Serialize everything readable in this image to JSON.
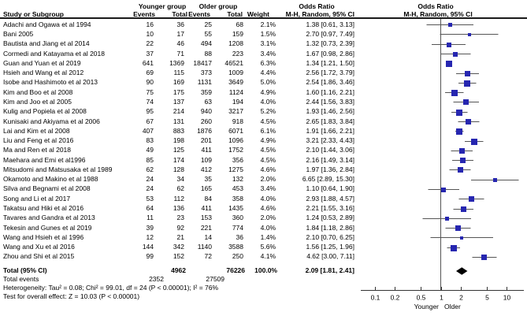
{
  "header": {
    "group1": "Younger group",
    "group2": "Older group",
    "odds_ratio": "Odds Ratio",
    "method_ci": "M-H, Random, 95% CI",
    "study": "Study or Subgroup",
    "events": "Events",
    "total": "Total",
    "weight": "Weight"
  },
  "axis": {
    "scale": "log",
    "range": [
      0.1,
      10
    ],
    "ticks": [
      0.1,
      0.2,
      0.5,
      1,
      2,
      5,
      10
    ],
    "tick_labels": [
      "0.1",
      "0.2",
      "0.5",
      "1",
      "2",
      "5",
      "10"
    ],
    "favours_left": "Younger",
    "favours_right": "Older"
  },
  "colors": {
    "marker": "#2626b0",
    "ci_line": "#555555",
    "guide_line": "#555555",
    "axis": "#333333",
    "diamond": "#000000",
    "rule": "#1a1a1a"
  },
  "chart_data": {
    "type": "scatter",
    "subtype": "forest-plot",
    "effect_measure": "Odds Ratio, M-H, Random, 95% CI",
    "studies": [
      {
        "name": "Adachi and Ogawa et al 1994",
        "events_younger": "16",
        "total_younger": "36",
        "events_older": "25",
        "total_older": "68",
        "weight": "2.1%",
        "or_text": "1.38 [0.61, 3.13]",
        "or": 1.38,
        "lo": 0.61,
        "hi": 3.13,
        "w": 2.1
      },
      {
        "name": "Bani 2005",
        "events_younger": "10",
        "total_younger": "17",
        "events_older": "55",
        "total_older": "159",
        "weight": "1.5%",
        "or_text": "2.70 [0.97, 7.49]",
        "or": 2.7,
        "lo": 0.97,
        "hi": 7.49,
        "w": 1.5
      },
      {
        "name": "Bautista and Jiang et al 2014",
        "events_younger": "22",
        "total_younger": "46",
        "events_older": "494",
        "total_older": "1208",
        "weight": "3.1%",
        "or_text": "1.32 [0.73, 2.39]",
        "or": 1.32,
        "lo": 0.73,
        "hi": 2.39,
        "w": 3.1
      },
      {
        "name": "Cormedi and Katayama et al 2018",
        "events_younger": "37",
        "total_younger": "71",
        "events_older": "88",
        "total_older": "223",
        "weight": "3.4%",
        "or_text": "1.67 [0.98, 2.86]",
        "or": 1.67,
        "lo": 0.98,
        "hi": 2.86,
        "w": 3.4
      },
      {
        "name": "Guan and Yuan et al 2019",
        "events_younger": "641",
        "total_younger": "1369",
        "events_older": "18417",
        "total_older": "46521",
        "weight": "6.3%",
        "or_text": "1.34 [1.21, 1.50]",
        "or": 1.34,
        "lo": 1.21,
        "hi": 1.5,
        "w": 6.3
      },
      {
        "name": "Hsieh and Wang et al 2012",
        "events_younger": "69",
        "total_younger": "115",
        "events_older": "373",
        "total_older": "1009",
        "weight": "4.4%",
        "or_text": "2.56 [1.72, 3.79]",
        "or": 2.56,
        "lo": 1.72,
        "hi": 3.79,
        "w": 4.4
      },
      {
        "name": "Isobe and Hashimoto et al 2013",
        "events_younger": "90",
        "total_younger": "169",
        "events_older": "1131",
        "total_older": "3649",
        "weight": "5.0%",
        "or_text": "2.54 [1.86, 3.46]",
        "or": 2.54,
        "lo": 1.86,
        "hi": 3.46,
        "w": 5.0
      },
      {
        "name": "Kim and Boo et al 2008",
        "events_younger": "75",
        "total_younger": "175",
        "events_older": "359",
        "total_older": "1124",
        "weight": "4.9%",
        "or_text": "1.60 [1.16, 2.21]",
        "or": 1.6,
        "lo": 1.16,
        "hi": 2.21,
        "w": 4.9
      },
      {
        "name": "Kim and Joo et al 2005",
        "events_younger": "74",
        "total_younger": "137",
        "events_older": "63",
        "total_older": "194",
        "weight": "4.0%",
        "or_text": "2.44 [1.56, 3.83]",
        "or": 2.44,
        "lo": 1.56,
        "hi": 3.83,
        "w": 4.0
      },
      {
        "name": "Kulig and Popiela et al 2008",
        "events_younger": "95",
        "total_younger": "214",
        "events_older": "940",
        "total_older": "3217",
        "weight": "5.2%",
        "or_text": "1.93 [1.46, 2.56]",
        "or": 1.93,
        "lo": 1.46,
        "hi": 2.56,
        "w": 5.2
      },
      {
        "name": "Kunisaki and Akiyama et al 2006",
        "events_younger": "67",
        "total_younger": "131",
        "events_older": "260",
        "total_older": "918",
        "weight": "4.5%",
        "or_text": "2.65 [1.83, 3.84]",
        "or": 2.65,
        "lo": 1.83,
        "hi": 3.84,
        "w": 4.5
      },
      {
        "name": "Lai and Kim et al 2008",
        "events_younger": "407",
        "total_younger": "883",
        "events_older": "1876",
        "total_older": "6071",
        "weight": "6.1%",
        "or_text": "1.91 [1.66, 2.21]",
        "or": 1.91,
        "lo": 1.66,
        "hi": 2.21,
        "w": 6.1
      },
      {
        "name": "Liu and Feng et al 2016",
        "events_younger": "83",
        "total_younger": "198",
        "events_older": "201",
        "total_older": "1096",
        "weight": "4.9%",
        "or_text": "3.21 [2.33, 4.43]",
        "or": 3.21,
        "lo": 2.33,
        "hi": 4.43,
        "w": 4.9
      },
      {
        "name": "Ma and Ren et al 2018",
        "events_younger": "49",
        "total_younger": "125",
        "events_older": "411",
        "total_older": "1752",
        "weight": "4.5%",
        "or_text": "2.10 [1.44, 3.06]",
        "or": 2.1,
        "lo": 1.44,
        "hi": 3.06,
        "w": 4.5
      },
      {
        "name": "Maehara and Emi et al1996",
        "events_younger": "85",
        "total_younger": "174",
        "events_older": "109",
        "total_older": "356",
        "weight": "4.5%",
        "or_text": "2.16 [1.49, 3.14]",
        "or": 2.16,
        "lo": 1.49,
        "hi": 3.14,
        "w": 4.5
      },
      {
        "name": "Mitsudomi and Matsusaka et al 1989",
        "events_younger": "62",
        "total_younger": "128",
        "events_older": "412",
        "total_older": "1275",
        "weight": "4.6%",
        "or_text": "1.97 [1.36, 2.84]",
        "or": 1.97,
        "lo": 1.36,
        "hi": 2.84,
        "w": 4.6
      },
      {
        "name": "Okamoto and Makino et al 1988",
        "events_younger": "24",
        "total_younger": "34",
        "events_older": "35",
        "total_older": "132",
        "weight": "2.0%",
        "or_text": "6.65 [2.89, 15.30]",
        "or": 6.65,
        "lo": 2.89,
        "hi": 15.3,
        "w": 2.0
      },
      {
        "name": "Silva and Begnami et al 2008",
        "events_younger": "24",
        "total_younger": "62",
        "events_older": "165",
        "total_older": "453",
        "weight": "3.4%",
        "or_text": "1.10 [0.64, 1.90]",
        "or": 1.1,
        "lo": 0.64,
        "hi": 1.9,
        "w": 3.4
      },
      {
        "name": "Song and Li et al 2017",
        "events_younger": "53",
        "total_younger": "112",
        "events_older": "84",
        "total_older": "358",
        "weight": "4.0%",
        "or_text": "2.93 [1.88, 4.57]",
        "or": 2.93,
        "lo": 1.88,
        "hi": 4.57,
        "w": 4.0
      },
      {
        "name": "Takatsu and Hiki et al 2016",
        "events_younger": "64",
        "total_younger": "136",
        "events_older": "411",
        "total_older": "1435",
        "weight": "4.6%",
        "or_text": "2.21 [1.55, 3.16]",
        "or": 2.21,
        "lo": 1.55,
        "hi": 3.16,
        "w": 4.6
      },
      {
        "name": "Tavares and Gandra et al 2013",
        "events_younger": "11",
        "total_younger": "23",
        "events_older": "153",
        "total_older": "360",
        "weight": "2.0%",
        "or_text": "1.24 [0.53, 2.89]",
        "or": 1.24,
        "lo": 0.53,
        "hi": 2.89,
        "w": 2.0
      },
      {
        "name": "Tekesin and Gunes et al 2019",
        "events_younger": "39",
        "total_younger": "92",
        "events_older": "221",
        "total_older": "774",
        "weight": "4.0%",
        "or_text": "1.84 [1.18, 2.86]",
        "or": 1.84,
        "lo": 1.18,
        "hi": 2.86,
        "w": 4.0
      },
      {
        "name": "Wang and Hsieh et al 1996",
        "events_younger": "12",
        "total_younger": "21",
        "events_older": "14",
        "total_older": "36",
        "weight": "1.4%",
        "or_text": "2.10 [0.70, 6.25]",
        "or": 2.1,
        "lo": 0.7,
        "hi": 6.25,
        "w": 1.4
      },
      {
        "name": "Wang and Xu et al 2016",
        "events_younger": "144",
        "total_younger": "342",
        "events_older": "1140",
        "total_older": "3588",
        "weight": "5.6%",
        "or_text": "1.56 [1.25, 1.96]",
        "or": 1.56,
        "lo": 1.25,
        "hi": 1.96,
        "w": 5.6
      },
      {
        "name": "Zhou and Shi et al 2015",
        "events_younger": "99",
        "total_younger": "152",
        "events_older": "72",
        "total_older": "250",
        "weight": "4.1%",
        "or_text": "4.62 [3.00, 7.11]",
        "or": 4.62,
        "lo": 3.0,
        "hi": 7.11,
        "w": 4.1
      }
    ],
    "totals": {
      "label": "Total (95% CI)",
      "total_younger": "4962",
      "total_older": "76226",
      "weight": "100.0%",
      "or_text": "2.09 [1.81, 2.41]",
      "or": 2.09,
      "lo": 1.81,
      "hi": 2.41
    },
    "total_events": {
      "label": "Total events",
      "younger": "2352",
      "older": "27509"
    },
    "heterogeneity": "Heterogeneity: Tau² = 0.08; Chi² = 99.01, df = 24 (P < 0.00001); I² = 76%",
    "overall_effect": "Test for overall effect: Z = 10.03 (P < 0.00001)"
  }
}
